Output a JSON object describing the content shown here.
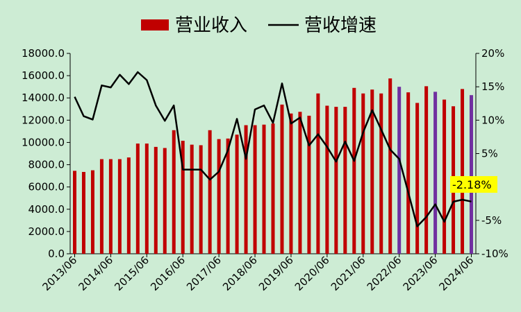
{
  "chart_data": {
    "type": "bar",
    "categories": [
      "2013/06",
      "2013/09",
      "2013/12",
      "2014/03",
      "2014/06",
      "2014/09",
      "2014/12",
      "2015/03",
      "2015/06",
      "2015/09",
      "2015/12",
      "2016/03",
      "2016/06",
      "2016/09",
      "2016/12",
      "2017/03",
      "2017/06",
      "2017/09",
      "2017/12",
      "2018/03",
      "2018/06",
      "2018/09",
      "2018/12",
      "2019/03",
      "2019/06",
      "2019/09",
      "2019/12",
      "2020/03",
      "2020/06",
      "2020/09",
      "2020/12",
      "2021/03",
      "2021/06",
      "2021/09",
      "2021/12",
      "2022/03",
      "2022/06",
      "2022/09",
      "2022/12",
      "2023/03",
      "2023/06",
      "2023/09",
      "2023/12",
      "2024/03",
      "2024/06"
    ],
    "x_tick_labels": [
      "2013/06",
      "2014/06",
      "2015/06",
      "2016/06",
      "2017/06",
      "2018/06",
      "2019/06",
      "2020/06",
      "2021/06",
      "2022/06",
      "2023/06",
      "2024/06"
    ],
    "series": [
      {
        "name": "营业收入",
        "type": "bar",
        "axis": "left",
        "color": "#c00000",
        "highlight_color": "#7030a0",
        "highlight_indices": [
          36,
          40,
          44
        ],
        "values": [
          7450,
          7350,
          7500,
          8500,
          8500,
          8500,
          8650,
          9900,
          9900,
          9600,
          9500,
          11100,
          10150,
          9800,
          9750,
          11100,
          10300,
          10350,
          10700,
          11550,
          11550,
          11600,
          11700,
          13400,
          12600,
          12750,
          12400,
          14400,
          13300,
          13200,
          13200,
          14900,
          14400,
          14750,
          14400,
          15750,
          15000,
          14500,
          13550,
          15050,
          14550,
          13850,
          13250,
          14800,
          14250
        ]
      },
      {
        "name": "营收增速",
        "type": "line",
        "axis": "right",
        "color": "#000000",
        "values": [
          13.5,
          10.6,
          10.1,
          15.2,
          14.9,
          16.8,
          15.4,
          17.2,
          16.0,
          12.2,
          9.9,
          12.2,
          2.6,
          2.6,
          2.6,
          1.1,
          2.3,
          5.5,
          10.2,
          4.2,
          11.6,
          12.2,
          9.6,
          15.5,
          9.5,
          10.4,
          6.2,
          7.9,
          6.0,
          3.8,
          6.8,
          3.9,
          8.2,
          11.5,
          8.6,
          5.6,
          4.2,
          -0.8,
          -5.9,
          -4.5,
          -2.6,
          -5.2,
          -2.2,
          -1.9,
          -2.18
        ]
      }
    ],
    "y_left": {
      "min": 0,
      "max": 18000,
      "ticks": [
        "0.0",
        "2000.0",
        "4000.0",
        "6000.0",
        "8000.0",
        "10000.0",
        "12000.0",
        "14000.0",
        "16000.0",
        "18000.0"
      ]
    },
    "y_right": {
      "min": -10,
      "max": 20,
      "ticks": [
        "-10%",
        "-5%",
        "0%",
        "5%",
        "10%",
        "15%",
        "20%"
      ]
    },
    "legend": {
      "position": "top-center",
      "items": [
        "营业收入",
        "营收增速"
      ]
    },
    "annotation": {
      "text": "-2.18%",
      "background": "#ffff00",
      "index": 44
    },
    "grid": false
  }
}
